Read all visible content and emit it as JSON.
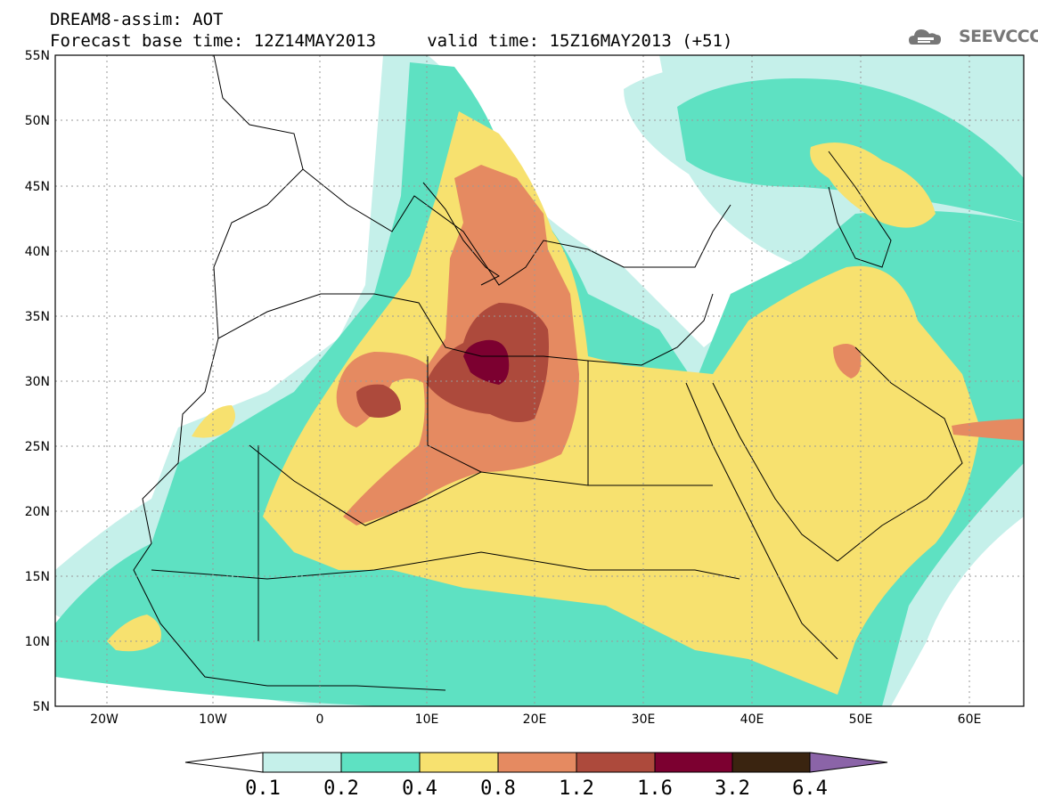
{
  "header": {
    "line1": "DREAM8-assim: AOT",
    "line2": "Forecast base time: 12Z14MAY2013     valid time: 15Z16MAY2013 (+51)"
  },
  "logo": {
    "text": "SEEVCCC",
    "icon": "cloud-icon"
  },
  "map": {
    "lat_labels": [
      "55N",
      "50N",
      "45N",
      "40N",
      "35N",
      "30N",
      "25N",
      "20N",
      "15N",
      "10N",
      "5N"
    ],
    "lon_labels": [
      "20W",
      "10W",
      "0",
      "10E",
      "20E",
      "30E",
      "40E",
      "50E",
      "60E"
    ],
    "lat_range": [
      5,
      55
    ],
    "lon_range": [
      -25,
      65
    ]
  },
  "colorbar": {
    "labels": [
      "0.1",
      "0.2",
      "0.4",
      "0.8",
      "1.2",
      "1.6",
      "3.2",
      "6.4"
    ],
    "colors": [
      "#ffffff",
      "#c5f0ea",
      "#5ee1c2",
      "#f7e16f",
      "#e58a61",
      "#ad4a3c",
      "#7c0030",
      "#3a2410",
      "#8b64a8"
    ]
  },
  "colors": {
    "c1": "#c5f0ea",
    "c2": "#5ee1c2",
    "c3": "#f7e16f",
    "c4": "#e58a61",
    "c5": "#ad4a3c",
    "c6": "#7c0030"
  }
}
